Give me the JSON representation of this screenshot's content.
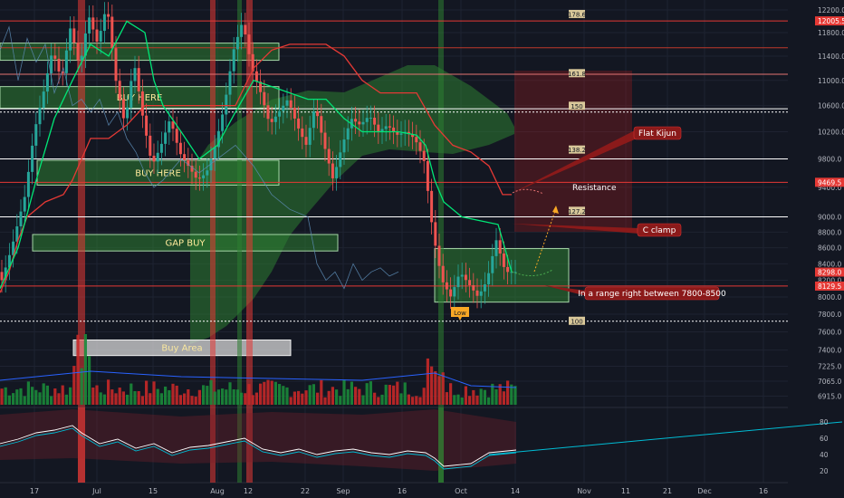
{
  "colors": {
    "background": "#131722",
    "up": "#26a69a",
    "down": "#ef5350",
    "kijun": "#e53935",
    "tenkan": "#00e676",
    "cloud": "#1b5e20",
    "resistance_line": "#e53935",
    "annotation": "#8b1a1a"
  },
  "chart_data": {
    "type": "candlestick",
    "title": "",
    "price_axis": {
      "ticks": [
        "12200.0",
        "11800.0",
        "11400.0",
        "11000.0",
        "10600.0",
        "10200.0",
        "9800.0",
        "9400.0",
        "9000.0",
        "8800.0",
        "8600.0",
        "8400.0",
        "8200.0",
        "8000.0",
        "7800.0",
        "7600.0",
        "7400.0",
        "7225.0",
        "7065.0",
        "6915.0"
      ],
      "scale": "log",
      "ylim": [
        6850,
        12450
      ]
    },
    "indicator_axis": {
      "ticks": [
        "80",
        "60",
        "40",
        "20"
      ],
      "ylim": [
        10,
        90
      ]
    },
    "time_axis": {
      "ticks": [
        "17",
        "Jul",
        "15",
        "Aug",
        "12",
        "22",
        "Sep",
        "16",
        "Oct",
        "14",
        "Nov",
        "11",
        "21",
        "Dec",
        "16"
      ]
    },
    "price_tags": [
      {
        "label": "12005.5",
        "value": 12005.5,
        "color": "#e53935"
      },
      {
        "label": "9469.5",
        "value": 9469.5,
        "color": "#e53935"
      },
      {
        "label": "8298.0",
        "value": 8298,
        "color": "#e53935"
      },
      {
        "label": "8129.5",
        "value": 8129.5,
        "color": "#e53935"
      }
    ],
    "horizontal_lines": [
      {
        "value": 12005.5,
        "color": "#e53935",
        "style": "solid"
      },
      {
        "value": 11540,
        "color": "#c0392b",
        "style": "solid"
      },
      {
        "value": 11100,
        "color": "#e57373",
        "style": "solid"
      },
      {
        "value": 10550,
        "color": "#ffffff",
        "style": "solid"
      },
      {
        "value": 10500,
        "color": "#ffffff",
        "style": "dotted"
      },
      {
        "value": 9800,
        "color": "#ffffff",
        "style": "solid"
      },
      {
        "value": 9469.5,
        "color": "#e53935",
        "style": "solid"
      },
      {
        "value": 9000,
        "color": "#ffffff",
        "style": "solid"
      },
      {
        "value": 8129.5,
        "color": "#e53935",
        "style": "solid"
      },
      {
        "value": 7720,
        "color": "#ffffff",
        "style": "dotted"
      }
    ],
    "fib_labels": [
      "178.6",
      "161.8",
      "150",
      "138.2",
      "127.2",
      "100"
    ],
    "zones": [
      {
        "label": "",
        "x0": 0,
        "x1": 308,
        "p0": 11620,
        "p1": 11330,
        "style": "green"
      },
      {
        "label": "BUY HERE",
        "x0": 0,
        "x1": 308,
        "p0": 10900,
        "p1": 10560,
        "style": "green"
      },
      {
        "label": "BUY HERE",
        "x0": 41,
        "x1": 308,
        "p0": 9780,
        "p1": 9430,
        "style": "green"
      },
      {
        "label": "GAP BUY",
        "x0": 36,
        "x1": 373,
        "p0": 8770,
        "p1": 8560,
        "style": "green"
      },
      {
        "label": "Buy Area",
        "x0": 81,
        "x1": 321,
        "p0": 7510,
        "p1": 7340,
        "style": "white"
      },
      {
        "label": "",
        "x0": 480,
        "x1": 628,
        "p0": 8590,
        "p1": 7940,
        "style": "green"
      }
    ],
    "annotations": [
      {
        "label": "Flat Kijun",
        "color": "#8b1a1a"
      },
      {
        "label": "Resistance",
        "color": "none"
      },
      {
        "label": "C clamp",
        "color": "#8b1a1a"
      },
      {
        "label": "In a range right between 7800-8500",
        "color": "#8b1a1a"
      },
      {
        "label": "Low",
        "color": "#f9a825"
      }
    ],
    "volume_series": "green/red bars",
    "oscillator": {
      "name": "",
      "ylim": [
        10,
        90
      ]
    }
  }
}
